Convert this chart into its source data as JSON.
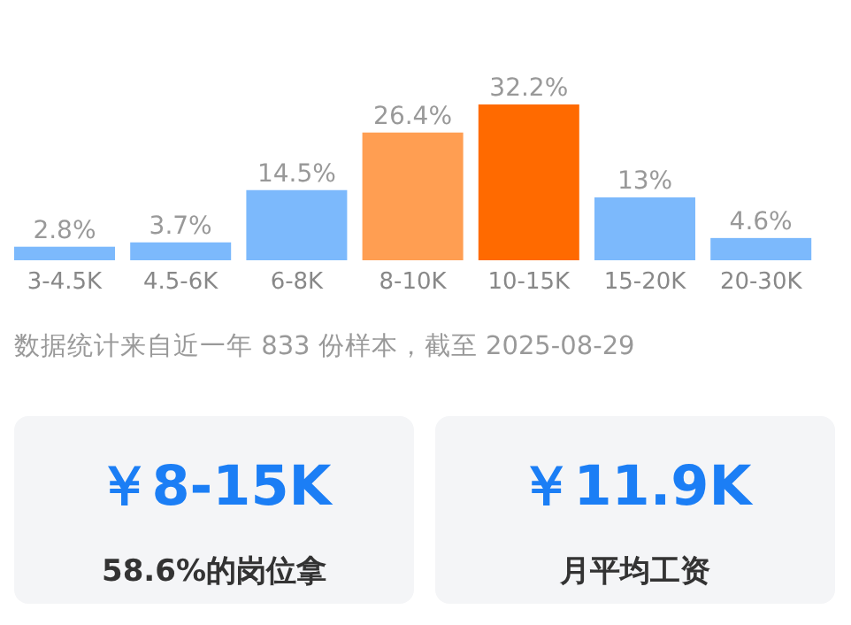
{
  "chart_data": [
    {
      "type": "bar",
      "categories": [
        "3-4.5K",
        "4.5-6K",
        "6-8K",
        "8-10K",
        "10-15K",
        "15-20K",
        "20-30K"
      ],
      "values": [
        2.8,
        3.7,
        14.5,
        26.4,
        32.2,
        13,
        4.6
      ],
      "colors": [
        "#7cb9fc",
        "#7cb9fc",
        "#7cb9fc",
        "#ff9e52",
        "#ff6a00",
        "#7cb9fc",
        "#7cb9fc"
      ],
      "value_labels": [
        "2.8%",
        "3.7%",
        "14.5%",
        "26.4%",
        "32.2%",
        "13%",
        "4.6%"
      ],
      "annotations": [
        "数据统计来自近一年 833 份样本，截至 2025-08-29"
      ]
    },
    {
      "type": "other",
      "annotations": [
        "￥8-15K",
        "58.6%的岗位拿",
        "￥11.9K",
        "月平均工资"
      ]
    }
  ]
}
